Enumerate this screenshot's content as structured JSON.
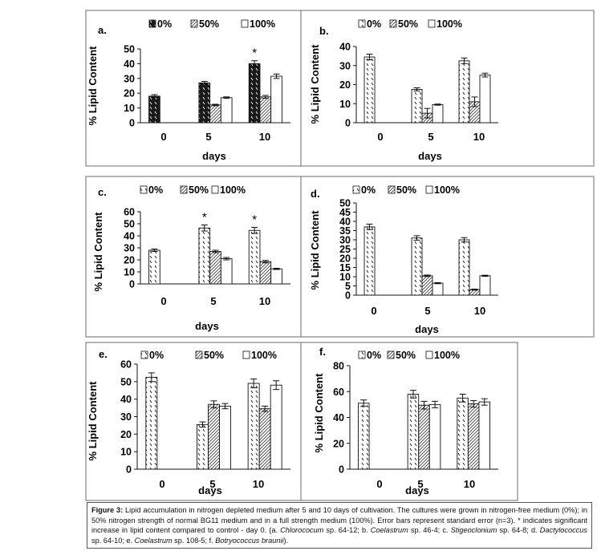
{
  "chart_data": [
    {
      "type": "bar",
      "panel_label": "a.",
      "categories": [
        "0",
        "5",
        "10"
      ],
      "xlabel": "days",
      "ylabel": "% Lipid Content",
      "ylim": [
        0,
        50
      ],
      "yticks": [
        0,
        10,
        20,
        30,
        40,
        50
      ],
      "legend": [
        "0%",
        "50%",
        "100%"
      ],
      "series": [
        {
          "name": "0%",
          "values": [
            18,
            27,
            40
          ],
          "errors": [
            1,
            1,
            2
          ]
        },
        {
          "name": "50%",
          "values": [
            null,
            12,
            17.5
          ],
          "errors": [
            null,
            0.5,
            1
          ]
        },
        {
          "name": "100%",
          "values": [
            null,
            17,
            31.5
          ],
          "errors": [
            null,
            0.5,
            1.5
          ]
        }
      ],
      "annotations": [
        {
          "text": "*",
          "category": "10",
          "series": "0%"
        }
      ]
    },
    {
      "type": "bar",
      "panel_label": "b.",
      "categories": [
        "0",
        "5",
        "10"
      ],
      "xlabel": "days",
      "ylabel": "% Lipid Content",
      "ylim": [
        0,
        40
      ],
      "yticks": [
        0,
        10,
        20,
        30,
        40
      ],
      "legend": [
        "0%",
        "50%",
        "100%"
      ],
      "series": [
        {
          "name": "0%",
          "values": [
            34.5,
            17.5,
            32.5
          ],
          "errors": [
            1.5,
            0.8,
            1.5
          ]
        },
        {
          "name": "50%",
          "values": [
            null,
            5,
            11
          ],
          "errors": [
            null,
            2.5,
            2.5
          ]
        },
        {
          "name": "100%",
          "values": [
            null,
            9.5,
            25
          ],
          "errors": [
            null,
            0.3,
            1
          ]
        }
      ],
      "annotations": []
    },
    {
      "type": "bar",
      "panel_label": "c.",
      "categories": [
        "0",
        "5",
        "10"
      ],
      "xlabel": "days",
      "ylabel": "% Lipid Content",
      "ylim": [
        0,
        60
      ],
      "yticks": [
        0,
        10,
        20,
        30,
        40,
        50,
        60
      ],
      "legend": [
        "0%",
        "50%",
        "100%"
      ],
      "series": [
        {
          "name": "0%",
          "values": [
            28,
            46.5,
            44.5
          ],
          "errors": [
            1,
            2.5,
            2.5
          ]
        },
        {
          "name": "50%",
          "values": [
            null,
            27,
            18.5
          ],
          "errors": [
            null,
            1,
            1
          ]
        },
        {
          "name": "100%",
          "values": [
            null,
            21,
            12.5
          ],
          "errors": [
            null,
            1,
            0.5
          ]
        }
      ],
      "annotations": [
        {
          "text": "*",
          "category": "5",
          "series": "0%"
        },
        {
          "text": "*",
          "category": "10",
          "series": "0%"
        }
      ]
    },
    {
      "type": "bar",
      "panel_label": "d.",
      "categories": [
        "0",
        "5",
        "10"
      ],
      "xlabel": "days",
      "ylabel": "% Lipid Content",
      "ylim": [
        0,
        50
      ],
      "yticks": [
        0,
        5,
        10,
        15,
        20,
        25,
        30,
        35,
        40,
        45,
        50
      ],
      "legend": [
        "0%",
        "50%",
        "100%"
      ],
      "series": [
        {
          "name": "0%",
          "values": [
            37,
            31,
            30
          ],
          "errors": [
            1.5,
            1.2,
            1.2
          ]
        },
        {
          "name": "50%",
          "values": [
            null,
            10.5,
            3
          ],
          "errors": [
            null,
            0.4,
            0.3
          ]
        },
        {
          "name": "100%",
          "values": [
            null,
            6.5,
            10.5
          ],
          "errors": [
            null,
            0.3,
            0.3
          ]
        }
      ],
      "annotations": []
    },
    {
      "type": "bar",
      "panel_label": "e.",
      "categories": [
        "0",
        "5",
        "10"
      ],
      "xlabel": "days",
      "ylabel": "% Lipid Content",
      "ylim": [
        0,
        60
      ],
      "yticks": [
        0,
        10,
        20,
        30,
        40,
        50,
        60
      ],
      "legend": [
        "0%",
        "50%",
        "100%"
      ],
      "series": [
        {
          "name": "0%",
          "values": [
            52.5,
            25.5,
            49
          ],
          "errors": [
            2.5,
            1.5,
            2.5
          ]
        },
        {
          "name": "50%",
          "values": [
            null,
            37,
            34.5
          ],
          "errors": [
            null,
            2,
            1.5
          ]
        },
        {
          "name": "100%",
          "values": [
            null,
            36,
            48
          ],
          "errors": [
            null,
            1.5,
            2.5
          ]
        }
      ],
      "annotations": []
    },
    {
      "type": "bar",
      "panel_label": "f.",
      "categories": [
        "0",
        "5",
        "10"
      ],
      "xlabel": "days",
      "ylabel": "% Lipid Content",
      "ylim": [
        0,
        80
      ],
      "yticks": [
        0,
        20,
        40,
        60,
        80
      ],
      "legend": [
        "0%",
        "50%",
        "100%"
      ],
      "series": [
        {
          "name": "0%",
          "values": [
            51,
            58,
            55
          ],
          "errors": [
            2.5,
            3,
            3
          ]
        },
        {
          "name": "50%",
          "values": [
            null,
            49.5,
            50.5
          ],
          "errors": [
            null,
            3,
            2.5
          ]
        },
        {
          "name": "100%",
          "values": [
            null,
            50,
            52
          ],
          "errors": [
            null,
            2.5,
            2.5
          ]
        }
      ],
      "annotations": []
    }
  ],
  "caption": {
    "label": "Figure 3:",
    "text_1": " Lipid accumulation in nitrogen depleted medium after 5 and 10 days of cultivation. The cultures were grown in nitrogen-free medium (0%); in 50% nitrogen strength of normal BG11 medium and in a full strength medium (100%). Error bars represent standard error (n=3). * indicates significant increase in lipid content compared to control - day 0. (a. ",
    "sp_a": "Chlorococum",
    "text_2": " sp. 64-12; b. ",
    "sp_b": "Coelastrum",
    "text_3": " sp. 46-4; c. ",
    "sp_c": "Stigeoclonium",
    "text_4": " sp. 64-8; d. ",
    "sp_d": "Dactylococcus",
    "text_5": " sp. 64-10; e. ",
    "sp_e": "Coelastrum",
    "text_6": " sp. 108-5; f. ",
    "sp_f": "Botryococcus braunii",
    "text_7": ")."
  }
}
